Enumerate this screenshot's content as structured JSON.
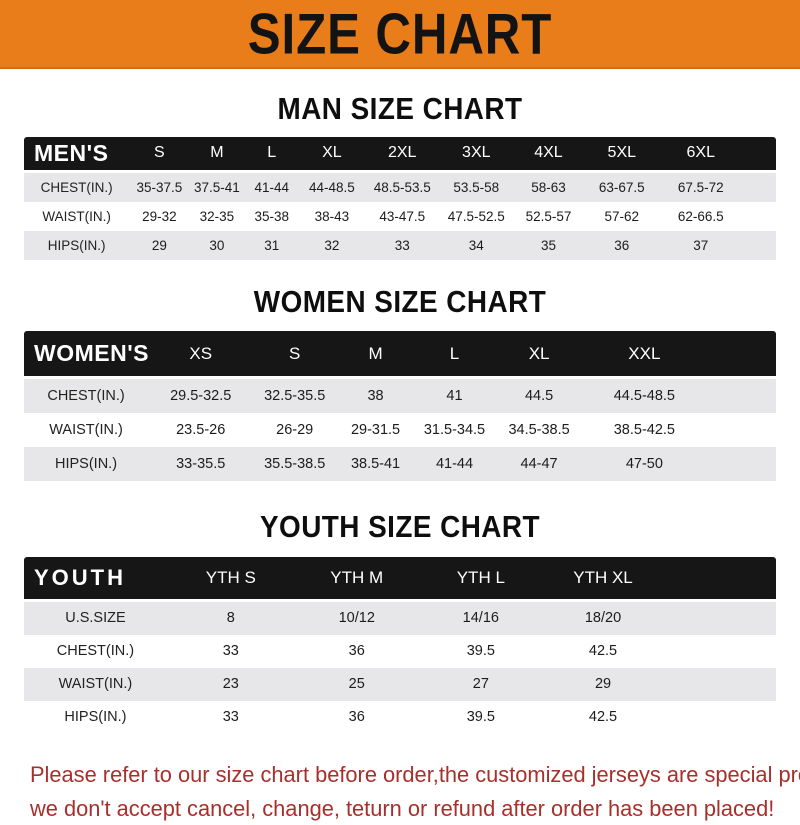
{
  "header": {
    "title": "SIZE CHART"
  },
  "sections": {
    "men": {
      "heading": "MAN SIZE CHART",
      "label": "MEN'S",
      "columns": [
        "S",
        "M",
        "L",
        "XL",
        "2XL",
        "3XL",
        "4XL",
        "5XL",
        "6XL"
      ],
      "rows": [
        {
          "label": "CHEST(IN.)",
          "values": [
            "35-37.5",
            "37.5-41",
            "41-44",
            "44-48.5",
            "48.5-53.5",
            "53.5-58",
            "58-63",
            "63-67.5",
            "67.5-72"
          ]
        },
        {
          "label": "WAIST(IN.)",
          "values": [
            "29-32",
            "32-35",
            "35-38",
            "38-43",
            "43-47.5",
            "47.5-52.5",
            "52.5-57",
            "57-62",
            "62-66.5"
          ]
        },
        {
          "label": "HIPS(IN.)",
          "values": [
            "29",
            "30",
            "31",
            "32",
            "33",
            "34",
            "35",
            "36",
            "37"
          ]
        }
      ]
    },
    "women": {
      "heading": "WOMEN SIZE CHART",
      "label": "WOMEN'S",
      "columns": [
        "XS",
        "S",
        "M",
        "L",
        "XL",
        "XXL"
      ],
      "rows": [
        {
          "label": "CHEST(IN.)",
          "values": [
            "29.5-32.5",
            "32.5-35.5",
            "38",
            "41",
            "44.5",
            "44.5-48.5"
          ]
        },
        {
          "label": "WAIST(IN.)",
          "values": [
            "23.5-26",
            "26-29",
            "29-31.5",
            "31.5-34.5",
            "34.5-38.5",
            "38.5-42.5"
          ]
        },
        {
          "label": "HIPS(IN.)",
          "values": [
            "33-35.5",
            "35.5-38.5",
            "38.5-41",
            "41-44",
            "44-47",
            "47-50"
          ]
        }
      ]
    },
    "youth": {
      "heading": "YOUTH SIZE CHART",
      "label": "YOUTH",
      "columns": [
        "YTH S",
        "YTH M",
        "YTH L",
        "YTH XL"
      ],
      "rows": [
        {
          "label": "U.S.SIZE",
          "values": [
            "8",
            "10/12",
            "14/16",
            "18/20"
          ]
        },
        {
          "label": "CHEST(IN.)",
          "values": [
            "33",
            "36",
            "39.5",
            "42.5"
          ]
        },
        {
          "label": "WAIST(IN.)",
          "values": [
            "23",
            "25",
            "27",
            "29"
          ]
        },
        {
          "label": "HIPS(IN.)",
          "values": [
            "33",
            "36",
            "39.5",
            "42.5"
          ]
        }
      ]
    }
  },
  "footer": {
    "line1": "Please refer to our size chart before order,the customized jerseys are special products,",
    "line2": "we don't accept cancel, change, teturn or refund after order has been placed!"
  },
  "colors": {
    "accent_orange": "#E87D1A",
    "table_bar_black": "#161616",
    "row_gray": "#E7E7E9",
    "notice_red": "#A7302C"
  }
}
